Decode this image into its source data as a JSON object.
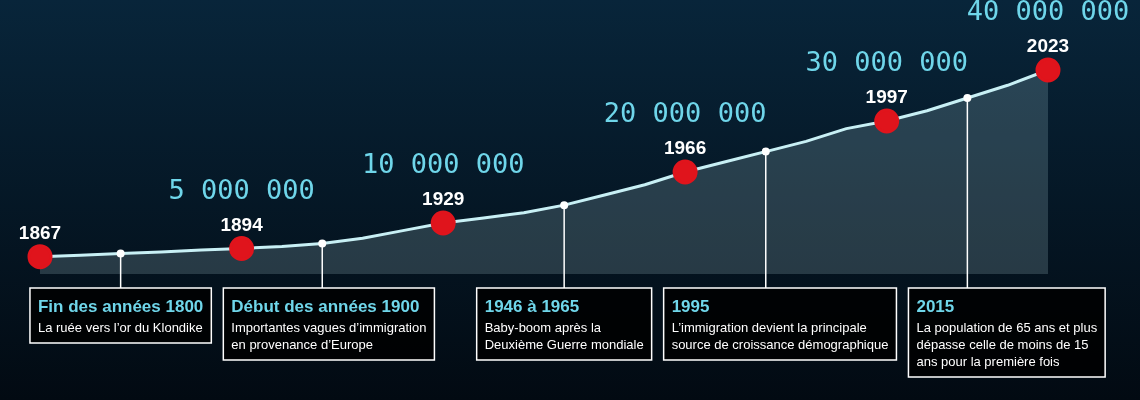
{
  "chart_data": {
    "type": "area",
    "grid": false,
    "legend": false,
    "categories": [
      null,
      null,
      null,
      null,
      null,
      null,
      null,
      null,
      null,
      null,
      null,
      null,
      null,
      null,
      null,
      null,
      null,
      null,
      null,
      null,
      null,
      null,
      null,
      null,
      null,
      null
    ],
    "series": [
      {
        "color": "#c8f0f5",
        "values": [
          3400000,
          3700000,
          4000000,
          4300000,
          4700000,
          5000000,
          5400000,
          6000000,
          7000000,
          8500000,
          10000000,
          11000000,
          12000000,
          13500000,
          15500000,
          17500000,
          20000000,
          22000000,
          24000000,
          26000000,
          28500000,
          30000000,
          32000000,
          34500000,
          37000000,
          40000000
        ],
        "colors": [
          "#e0141c",
          null,
          null,
          null,
          null,
          "#e0141c",
          null,
          null,
          null,
          null,
          "#e0141c",
          null,
          null,
          null,
          null,
          null,
          "#e0141c",
          null,
          null,
          null,
          null,
          "#e0141c",
          null,
          null,
          null,
          "#e0141c"
        ],
        "value_labels": [
          null,
          null,
          null,
          null,
          null,
          "5 000 000",
          null,
          null,
          null,
          null,
          "10 000 000",
          null,
          null,
          null,
          null,
          null,
          "20 000 000",
          null,
          null,
          null,
          null,
          "30 000 000",
          null,
          null,
          null,
          "40 000 000"
        ]
      }
    ],
    "annotations": [
      "1867",
      "1894",
      "1929",
      "1966",
      "1997",
      "2023",
      "Fin des années 1800\nLa ruée vers l’or du Klondike",
      "Début des années 1900\nImportantes vagues d’immigration\nen provenance d’Europe",
      "1946 à 1965\nBaby-boom après la\nDeuxième Guerre mondiale",
      "1995\nL’immigration devient la principale\nsource de croissance démographique",
      "2015\nLa population de 65 ans et plus\ndépasse celle de moins de 15\nans pour la première fois"
    ]
  }
}
